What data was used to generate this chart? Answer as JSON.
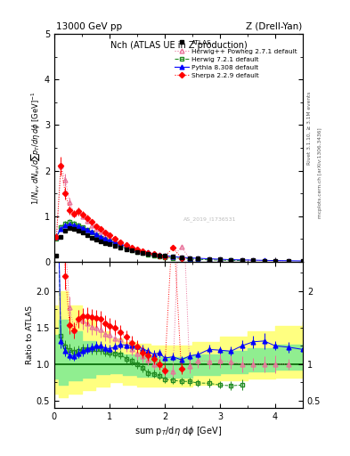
{
  "title_top": "13000 GeV pp",
  "title_right": "Z (Drell-Yan)",
  "plot_title": "Nch (ATLAS UE in Z production)",
  "ylabel_main": "1/N$_{ev}$ dN$_{ev}$/dsum p$_T$/d$\\eta$ d$\\phi$  [GeV]$^{-1}$",
  "ylabel_ratio": "Ratio to ATLAS",
  "xlabel": "sum p$_T$/d$\\eta$ d$\\phi$ [GeV]",
  "rivet_text": "Rivet 3.1.10, ≥ 3.1M events",
  "arxiv_text": "mcplots.cern.ch [arXiv:1306.3436]",
  "watermark": "AS_2019_I1736531",
  "xlim": [
    0,
    4.5
  ],
  "ylim_main": [
    0,
    5
  ],
  "ylim_ratio": [
    0.4,
    2.4
  ],
  "atlas_x": [
    0.04,
    0.12,
    0.2,
    0.28,
    0.36,
    0.44,
    0.52,
    0.6,
    0.68,
    0.76,
    0.84,
    0.92,
    1.0,
    1.1,
    1.2,
    1.3,
    1.4,
    1.5,
    1.6,
    1.7,
    1.8,
    1.9,
    2.0,
    2.15,
    2.3,
    2.45,
    2.6,
    2.8,
    3.0,
    3.2,
    3.4,
    3.6,
    3.8,
    4.0,
    4.25,
    4.5
  ],
  "atlas_y": [
    0.13,
    0.55,
    0.68,
    0.73,
    0.72,
    0.68,
    0.63,
    0.58,
    0.53,
    0.48,
    0.44,
    0.41,
    0.38,
    0.34,
    0.3,
    0.27,
    0.24,
    0.21,
    0.19,
    0.17,
    0.15,
    0.13,
    0.12,
    0.1,
    0.085,
    0.072,
    0.062,
    0.05,
    0.042,
    0.034,
    0.028,
    0.023,
    0.019,
    0.016,
    0.013,
    0.01
  ],
  "atlas_yerr": [
    0.015,
    0.035,
    0.025,
    0.025,
    0.02,
    0.02,
    0.018,
    0.016,
    0.015,
    0.014,
    0.013,
    0.012,
    0.011,
    0.01,
    0.009,
    0.008,
    0.007,
    0.006,
    0.006,
    0.005,
    0.005,
    0.004,
    0.004,
    0.003,
    0.003,
    0.003,
    0.002,
    0.002,
    0.002,
    0.001,
    0.001,
    0.001,
    0.001,
    0.001,
    0.001,
    0.001
  ],
  "herwig_pp_x": [
    0.04,
    0.12,
    0.2,
    0.28,
    0.36,
    0.44,
    0.52,
    0.6,
    0.68,
    0.76,
    0.84,
    0.92,
    1.0,
    1.1,
    1.2,
    1.3,
    1.4,
    1.5,
    1.6,
    1.7,
    1.8,
    1.9,
    2.0,
    2.15,
    2.3,
    2.45,
    2.6,
    2.8,
    3.0,
    3.2,
    3.4,
    3.6,
    3.8,
    4.0,
    4.25
  ],
  "herwig_pp_y": [
    0.55,
    2.1,
    1.8,
    1.3,
    1.05,
    1.1,
    1.0,
    0.9,
    0.8,
    0.72,
    0.65,
    0.58,
    0.53,
    0.46,
    0.4,
    0.34,
    0.29,
    0.24,
    0.21,
    0.18,
    0.15,
    0.13,
    0.11,
    0.09,
    0.32,
    0.07,
    0.065,
    0.052,
    0.044,
    0.035,
    0.028,
    0.023,
    0.019,
    0.016,
    0.013
  ],
  "herwig_pp_yerr": [
    0.05,
    0.18,
    0.14,
    0.1,
    0.08,
    0.08,
    0.07,
    0.07,
    0.06,
    0.05,
    0.05,
    0.04,
    0.04,
    0.035,
    0.03,
    0.026,
    0.022,
    0.018,
    0.016,
    0.013,
    0.012,
    0.01,
    0.009,
    0.008,
    0.008,
    0.007,
    0.006,
    0.005,
    0.004,
    0.003,
    0.003,
    0.002,
    0.002,
    0.002,
    0.001
  ],
  "herwig72_x": [
    0.04,
    0.12,
    0.2,
    0.28,
    0.36,
    0.44,
    0.52,
    0.6,
    0.68,
    0.76,
    0.84,
    0.92,
    1.0,
    1.1,
    1.2,
    1.3,
    1.4,
    1.5,
    1.6,
    1.7,
    1.8,
    1.9,
    2.0,
    2.15,
    2.3,
    2.45,
    2.6,
    2.8,
    3.0,
    3.2,
    3.4
  ],
  "herwig72_y": [
    0.5,
    0.76,
    0.84,
    0.87,
    0.84,
    0.8,
    0.76,
    0.7,
    0.64,
    0.58,
    0.53,
    0.48,
    0.44,
    0.39,
    0.34,
    0.29,
    0.25,
    0.21,
    0.18,
    0.15,
    0.13,
    0.11,
    0.095,
    0.078,
    0.065,
    0.055,
    0.046,
    0.037,
    0.03,
    0.024,
    0.02
  ],
  "herwig72_yerr": [
    0.04,
    0.06,
    0.06,
    0.06,
    0.05,
    0.05,
    0.045,
    0.04,
    0.038,
    0.035,
    0.03,
    0.028,
    0.025,
    0.022,
    0.019,
    0.017,
    0.014,
    0.012,
    0.01,
    0.009,
    0.008,
    0.007,
    0.006,
    0.005,
    0.004,
    0.004,
    0.003,
    0.003,
    0.002,
    0.002,
    0.002
  ],
  "pythia_x": [
    0.04,
    0.12,
    0.2,
    0.28,
    0.36,
    0.44,
    0.52,
    0.6,
    0.68,
    0.76,
    0.84,
    0.92,
    1.0,
    1.1,
    1.2,
    1.3,
    1.4,
    1.5,
    1.6,
    1.7,
    1.8,
    1.9,
    2.0,
    2.15,
    2.3,
    2.45,
    2.6,
    2.8,
    3.0,
    3.2,
    3.4,
    3.6,
    3.8,
    4.0,
    4.25,
    4.5
  ],
  "pythia_y": [
    0.55,
    0.72,
    0.8,
    0.82,
    0.8,
    0.78,
    0.74,
    0.7,
    0.65,
    0.6,
    0.55,
    0.5,
    0.46,
    0.42,
    0.38,
    0.34,
    0.3,
    0.26,
    0.23,
    0.2,
    0.17,
    0.15,
    0.13,
    0.11,
    0.09,
    0.08,
    0.07,
    0.06,
    0.05,
    0.04,
    0.035,
    0.03,
    0.025,
    0.02,
    0.016,
    0.012
  ],
  "pythia_yerr": [
    0.04,
    0.05,
    0.05,
    0.05,
    0.05,
    0.045,
    0.04,
    0.04,
    0.035,
    0.032,
    0.028,
    0.025,
    0.022,
    0.019,
    0.017,
    0.015,
    0.013,
    0.011,
    0.01,
    0.008,
    0.008,
    0.007,
    0.006,
    0.005,
    0.004,
    0.004,
    0.003,
    0.003,
    0.002,
    0.002,
    0.002,
    0.002,
    0.002,
    0.001,
    0.001,
    0.001
  ],
  "sherpa_x": [
    0.04,
    0.12,
    0.2,
    0.28,
    0.36,
    0.44,
    0.52,
    0.6,
    0.68,
    0.76,
    0.84,
    0.92,
    1.0,
    1.1,
    1.2,
    1.3,
    1.4,
    1.5,
    1.6,
    1.7,
    1.8,
    1.9,
    2.0,
    2.15,
    2.3
  ],
  "sherpa_y": [
    0.55,
    2.1,
    1.5,
    1.12,
    1.05,
    1.1,
    1.04,
    0.96,
    0.87,
    0.78,
    0.71,
    0.64,
    0.58,
    0.51,
    0.43,
    0.37,
    0.31,
    0.26,
    0.22,
    0.19,
    0.16,
    0.13,
    0.11,
    0.3,
    0.08
  ],
  "sherpa_yerr": [
    0.05,
    0.2,
    0.13,
    0.09,
    0.08,
    0.08,
    0.07,
    0.07,
    0.06,
    0.055,
    0.05,
    0.045,
    0.04,
    0.035,
    0.03,
    0.025,
    0.022,
    0.018,
    0.015,
    0.013,
    0.011,
    0.009,
    0.008,
    0.008,
    0.006
  ],
  "band_yellow_x": [
    0.0,
    0.08,
    0.25,
    0.5,
    0.75,
    1.0,
    1.25,
    1.5,
    1.75,
    2.0,
    2.5,
    3.0,
    3.5,
    4.0,
    4.5
  ],
  "band_yellow_lo": [
    0.6,
    0.55,
    0.6,
    0.65,
    0.7,
    0.75,
    0.72,
    0.7,
    0.7,
    0.7,
    0.72,
    0.78,
    0.8,
    0.82,
    0.82
  ],
  "band_yellow_hi": [
    1.8,
    2.0,
    1.8,
    1.6,
    1.45,
    1.35,
    1.3,
    1.28,
    1.25,
    1.25,
    1.3,
    1.38,
    1.45,
    1.52,
    1.58
  ],
  "band_green_x": [
    0.0,
    0.08,
    0.25,
    0.5,
    0.75,
    1.0,
    1.25,
    1.5,
    1.75,
    2.0,
    2.5,
    3.0,
    3.5,
    4.0,
    4.5
  ],
  "band_green_lo": [
    0.8,
    0.72,
    0.78,
    0.82,
    0.86,
    0.88,
    0.85,
    0.83,
    0.83,
    0.82,
    0.85,
    0.88,
    0.9,
    0.92,
    0.93
  ],
  "band_green_hi": [
    1.4,
    1.6,
    1.45,
    1.32,
    1.22,
    1.16,
    1.13,
    1.12,
    1.1,
    1.1,
    1.13,
    1.18,
    1.22,
    1.26,
    1.28
  ]
}
